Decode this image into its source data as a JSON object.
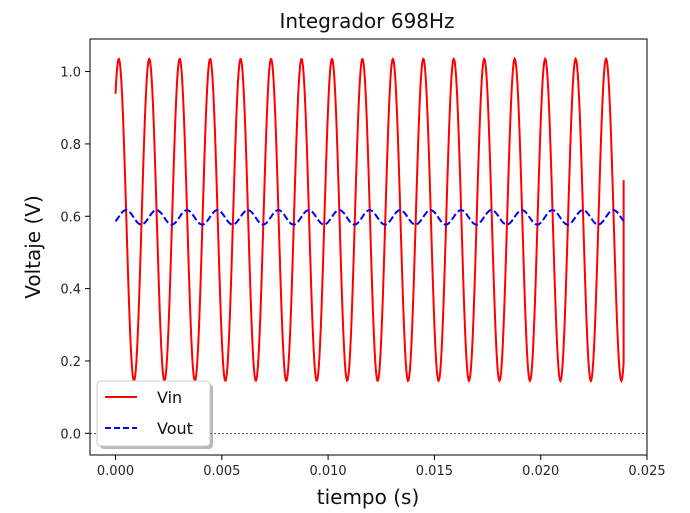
{
  "chart_data": {
    "type": "line",
    "title": "Integrador 698Hz",
    "xlabel": "tiempo (s)",
    "ylabel": "Voltaje (V)",
    "xlim": [
      -0.0012,
      0.025
    ],
    "ylim": [
      -0.06,
      1.09
    ],
    "xticks": [
      0.0,
      0.005,
      0.01,
      0.015,
      0.02,
      0.025
    ],
    "xtick_labels": [
      "0.000",
      "0.005",
      "0.010",
      "0.015",
      "0.020",
      "0.025"
    ],
    "yticks": [
      0.0,
      0.2,
      0.4,
      0.6,
      0.8,
      1.0
    ],
    "ytick_labels": [
      "0.0",
      "0.2",
      "0.4",
      "0.6",
      "0.8",
      "1.0"
    ],
    "zero_line": true,
    "grid": false,
    "legend_position": "lower-left",
    "series": [
      {
        "name": "Vin",
        "color": "#ff0000",
        "dash": "solid",
        "frequency_hz": 698,
        "offset_v": 0.59,
        "amplitude_v": 0.445,
        "phase_rad": 0.9,
        "t_start": 0.0,
        "t_end": 0.0239,
        "end_point": [
          0.0239,
          0.7
        ]
      },
      {
        "name": "Vout",
        "color": "#0000ff",
        "dash": "dashed",
        "frequency_hz": 698,
        "offset_v": 0.597,
        "amplitude_v": 0.02,
        "phase_rad": -0.6,
        "t_start": 0.0,
        "t_end": 0.0239
      }
    ]
  }
}
